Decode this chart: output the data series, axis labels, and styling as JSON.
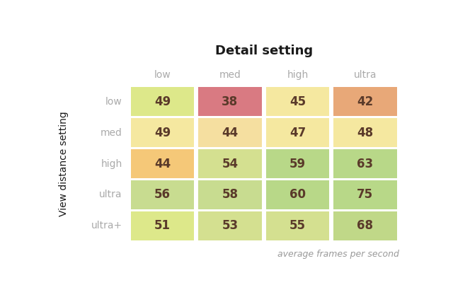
{
  "title": "Detail setting",
  "ylabel": "View distance setting",
  "col_labels": [
    "low",
    "med",
    "high",
    "ultra"
  ],
  "row_labels": [
    "low",
    "med",
    "high",
    "ultra",
    "ultra+"
  ],
  "values": [
    [
      49,
      38,
      45,
      42
    ],
    [
      49,
      44,
      47,
      48
    ],
    [
      44,
      54,
      59,
      63
    ],
    [
      56,
      58,
      60,
      75
    ],
    [
      51,
      53,
      55,
      68
    ]
  ],
  "cell_colors": [
    [
      "#dde88a",
      "#d97a82",
      "#f5e8a0",
      "#e8a878"
    ],
    [
      "#f5e8a0",
      "#f5dfa0",
      "#f5e8a0",
      "#f5e8a0"
    ],
    [
      "#f5c878",
      "#d4e090",
      "#b8d888",
      "#b8d888"
    ],
    [
      "#c8dc90",
      "#c8dc90",
      "#b8d888",
      "#b8d888"
    ],
    [
      "#dde88a",
      "#d4e090",
      "#d4e090",
      "#c0d888"
    ]
  ],
  "annotation": "average frames per second",
  "title_fontsize": 13,
  "label_fontsize": 10,
  "value_fontsize": 12,
  "annotation_fontsize": 9,
  "label_color": "#aaaaaa",
  "value_color": "#5a3a2a",
  "annotation_color": "#999999",
  "background_color": "#ffffff"
}
